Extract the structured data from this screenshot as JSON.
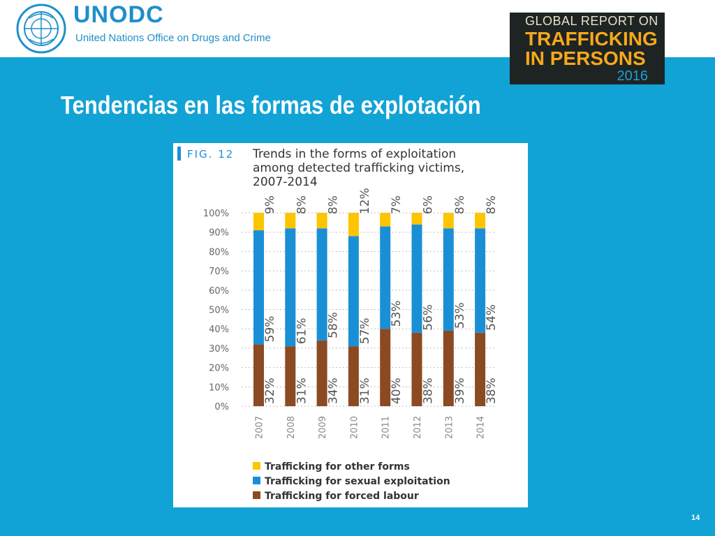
{
  "header": {
    "org_name": "UNODC",
    "org_subtitle": "United Nations Office on Drugs and Crime",
    "report": {
      "line1": "GLOBAL REPORT ON",
      "line2": "TRAFFICKING",
      "line3": "IN PERSONS",
      "year": "2016"
    }
  },
  "slide": {
    "title": "Tendencias en las formas de explotación",
    "page_number": "14"
  },
  "colors": {
    "band": "#12a3d6",
    "forced": "#8b4a22",
    "sexual": "#1b8fd6",
    "other": "#fdc400",
    "org_blue": "#1e8fc9"
  },
  "chart_data": {
    "type": "bar",
    "stacked": true,
    "fig_label": "FIG. 12",
    "title_lines": [
      "Trends in the forms of exploitation",
      "among detected trafficking victims,",
      "2007-2014"
    ],
    "categories": [
      "2007",
      "2008",
      "2009",
      "2010",
      "2011",
      "2012",
      "2013",
      "2014"
    ],
    "series": [
      {
        "name": "Trafficking for forced labour",
        "color": "#8b4a22",
        "values": [
          32,
          31,
          34,
          31,
          40,
          38,
          39,
          38
        ]
      },
      {
        "name": "Trafficking for sexual exploitation",
        "color": "#1b8fd6",
        "values": [
          59,
          61,
          58,
          57,
          53,
          56,
          53,
          54
        ]
      },
      {
        "name": "Trafficking for other forms",
        "color": "#fdc400",
        "values": [
          9,
          8,
          8,
          12,
          7,
          6,
          8,
          8
        ]
      }
    ],
    "legend_order": [
      "Trafficking for other forms",
      "Trafficking for sexual exploitation",
      "Trafficking for forced labour"
    ],
    "y_ticks": [
      "0%",
      "10%",
      "20%",
      "30%",
      "40%",
      "50%",
      "60%",
      "70%",
      "80%",
      "90%",
      "100%"
    ],
    "ylim": [
      0,
      100
    ],
    "grid": "horizontal-dotted",
    "legend_position": "bottom"
  }
}
